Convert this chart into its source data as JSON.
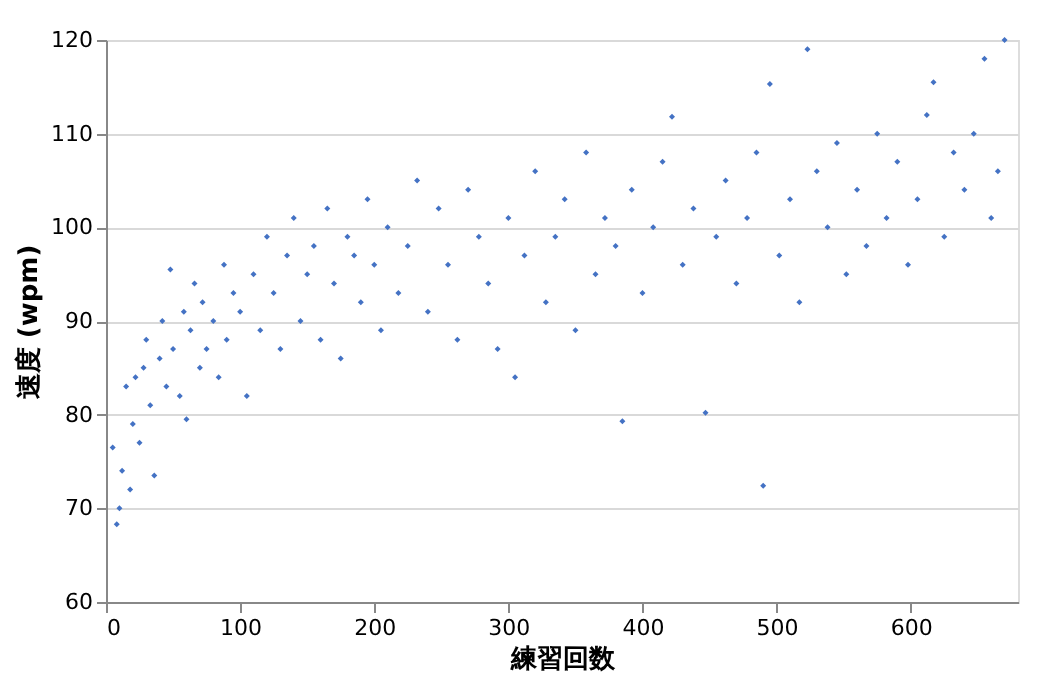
{
  "chart_data": {
    "type": "scatter",
    "xlabel": "練習回数",
    "ylabel": "速度 (wpm)",
    "xlim": [
      0,
      680
    ],
    "ylim": [
      60,
      120
    ],
    "xticks": [
      0,
      100,
      200,
      300,
      400,
      500,
      600
    ],
    "yticks": [
      60,
      70,
      80,
      90,
      100,
      110,
      120
    ],
    "grid": "y",
    "marker": "diamond",
    "series": [
      {
        "color": "#4472c4",
        "x": [
          5,
          8,
          10,
          12,
          15,
          18,
          20,
          22,
          25,
          28,
          30,
          33,
          36,
          40,
          42,
          45,
          48,
          50,
          55,
          58,
          60,
          63,
          66,
          70,
          72,
          75,
          80,
          84,
          88,
          90,
          95,
          100,
          105,
          110,
          115,
          120,
          125,
          130,
          135,
          140,
          145,
          150,
          155,
          160,
          165,
          170,
          175,
          180,
          185,
          190,
          195,
          200,
          205,
          210,
          218,
          225,
          232,
          240,
          248,
          255,
          262,
          270,
          278,
          285,
          292,
          300,
          305,
          312,
          320,
          328,
          335,
          342,
          350,
          358,
          365,
          372,
          380,
          385,
          392,
          400,
          408,
          415,
          422,
          430,
          438,
          447,
          455,
          462,
          470,
          478,
          485,
          490,
          495,
          502,
          510,
          517,
          523,
          530,
          538,
          545,
          552,
          560,
          567,
          575,
          582,
          590,
          598,
          605,
          612,
          617,
          625,
          632,
          640,
          647,
          655,
          660,
          665,
          670
        ],
        "values": [
          76.5,
          68.3,
          70,
          74,
          83,
          72,
          79,
          84,
          77,
          85,
          88,
          81,
          73.5,
          86,
          90,
          83,
          95.5,
          87,
          82,
          91,
          79.5,
          89,
          94,
          85,
          92,
          87,
          90,
          84,
          96,
          88,
          93,
          91,
          82,
          95,
          89,
          99,
          93,
          87,
          97,
          101,
          90,
          95,
          98,
          88,
          102,
          94,
          86,
          99,
          97,
          92,
          103,
          96,
          89,
          100,
          93,
          98,
          105,
          91,
          102,
          96,
          88,
          104,
          99,
          94,
          87,
          101,
          84,
          97,
          106,
          92,
          99,
          103,
          89,
          108,
          95,
          101,
          98,
          79.3,
          104,
          93,
          100,
          107,
          111.8,
          96,
          102,
          80.2,
          99,
          105,
          94,
          101,
          108,
          72.4,
          115.3,
          97,
          103,
          92,
          119,
          106,
          100,
          109,
          95,
          104,
          98,
          110,
          101,
          107,
          96,
          103,
          112,
          115.5,
          99,
          108,
          104,
          110,
          118,
          101,
          106,
          120
        ]
      }
    ]
  }
}
